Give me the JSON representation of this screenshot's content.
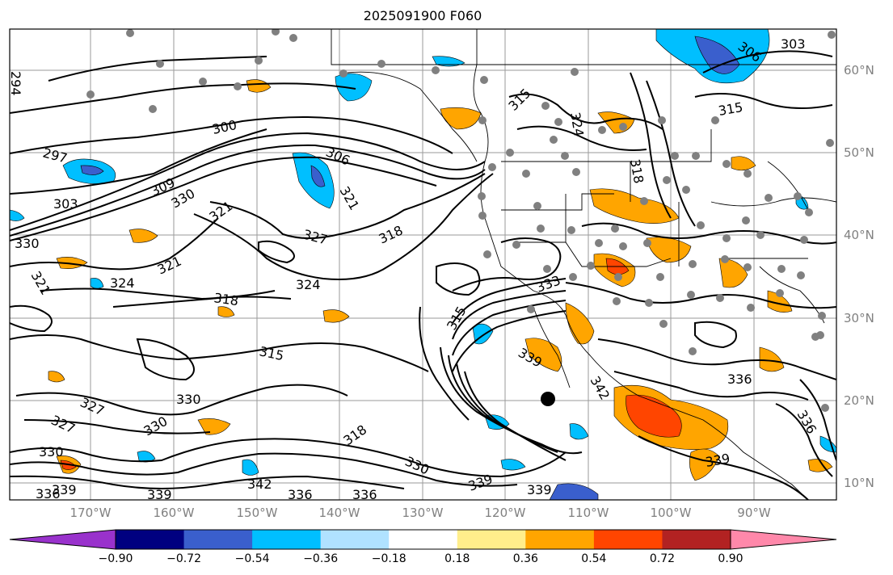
{
  "title": "2025091900 F060",
  "lat_labels": [
    "60°N",
    "50°N",
    "40°N",
    "30°N",
    "20°N",
    "10°N"
  ],
  "lon_labels": [
    "170°W",
    "160°W",
    "150°W",
    "140°W",
    "130°W",
    "120°W",
    "110°W",
    "100°W",
    "90°W"
  ],
  "contour_labels": [
    "294",
    "297",
    "300",
    "303",
    "306",
    "309",
    "315",
    "318",
    "321",
    "324",
    "327",
    "330",
    "333",
    "336",
    "339",
    "342"
  ],
  "colorbar": {
    "ticks": [
      "−0.90",
      "−0.72",
      "−0.54",
      "−0.36",
      "−0.18",
      "0.18",
      "0.36",
      "0.54",
      "0.72",
      "0.90"
    ],
    "colors": [
      "#9932cc",
      "#000080",
      "#3a5fcd",
      "#00bfff",
      "#b0e2ff",
      "#ffffff",
      "#ffee8b",
      "#ffa500",
      "#ff4500",
      "#b22222",
      "#ff88aa"
    ]
  }
}
